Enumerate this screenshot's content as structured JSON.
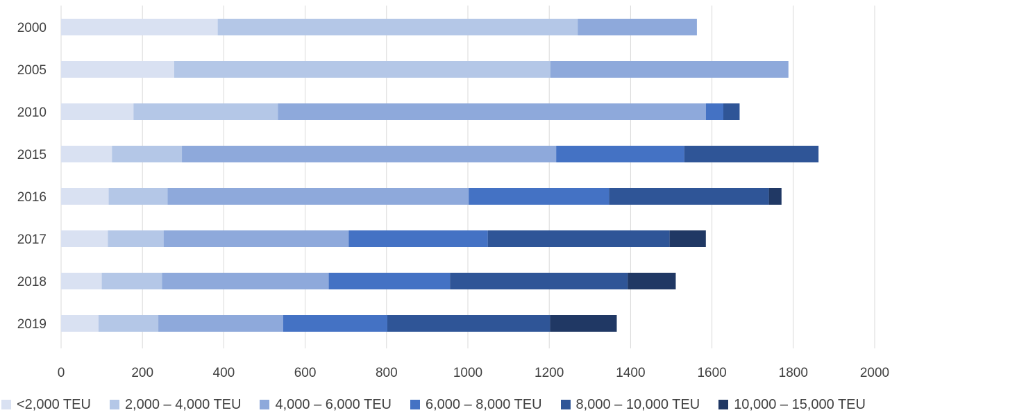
{
  "chart_data": {
    "type": "bar",
    "orientation": "horizontal",
    "stacked": true,
    "categories": [
      "2000",
      "2005",
      "2010",
      "2015",
      "2016",
      "2017",
      "2018",
      "2019"
    ],
    "series": [
      {
        "name": "<2,000 TEU",
        "color": "#D9E1F2",
        "values": [
          385,
          278,
          178,
          125,
          117,
          115,
          100,
          92
        ]
      },
      {
        "name": "2,000 – 4,000 TEU",
        "color": "#B4C7E7",
        "values": [
          885,
          925,
          355,
          172,
          145,
          137,
          148,
          147
        ]
      },
      {
        "name": "4,000 – 6,000 TEU",
        "color": "#8EA9DB",
        "values": [
          293,
          585,
          1052,
          920,
          740,
          455,
          410,
          307
        ]
      },
      {
        "name": "6,000 – 8,000 TEU",
        "color": "#4472C4",
        "values": [
          0,
          0,
          43,
          315,
          345,
          342,
          298,
          256
        ]
      },
      {
        "name": "8,000 – 10,000 TEU",
        "color": "#2F5597",
        "values": [
          0,
          0,
          40,
          330,
          393,
          447,
          437,
          400
        ]
      },
      {
        "name": "10,000 – 15,000 TEU",
        "color": "#203864",
        "values": [
          0,
          0,
          0,
          0,
          31,
          89,
          118,
          164
        ]
      }
    ],
    "xticks": [
      "0",
      "200",
      "400",
      "600",
      "800",
      "1000",
      "1200",
      "1400",
      "1600",
      "1800",
      "2000"
    ],
    "xlim": [
      0,
      2000
    ],
    "grid": true,
    "legend_position": "bottom",
    "title": "",
    "xlabel": "",
    "ylabel": ""
  }
}
